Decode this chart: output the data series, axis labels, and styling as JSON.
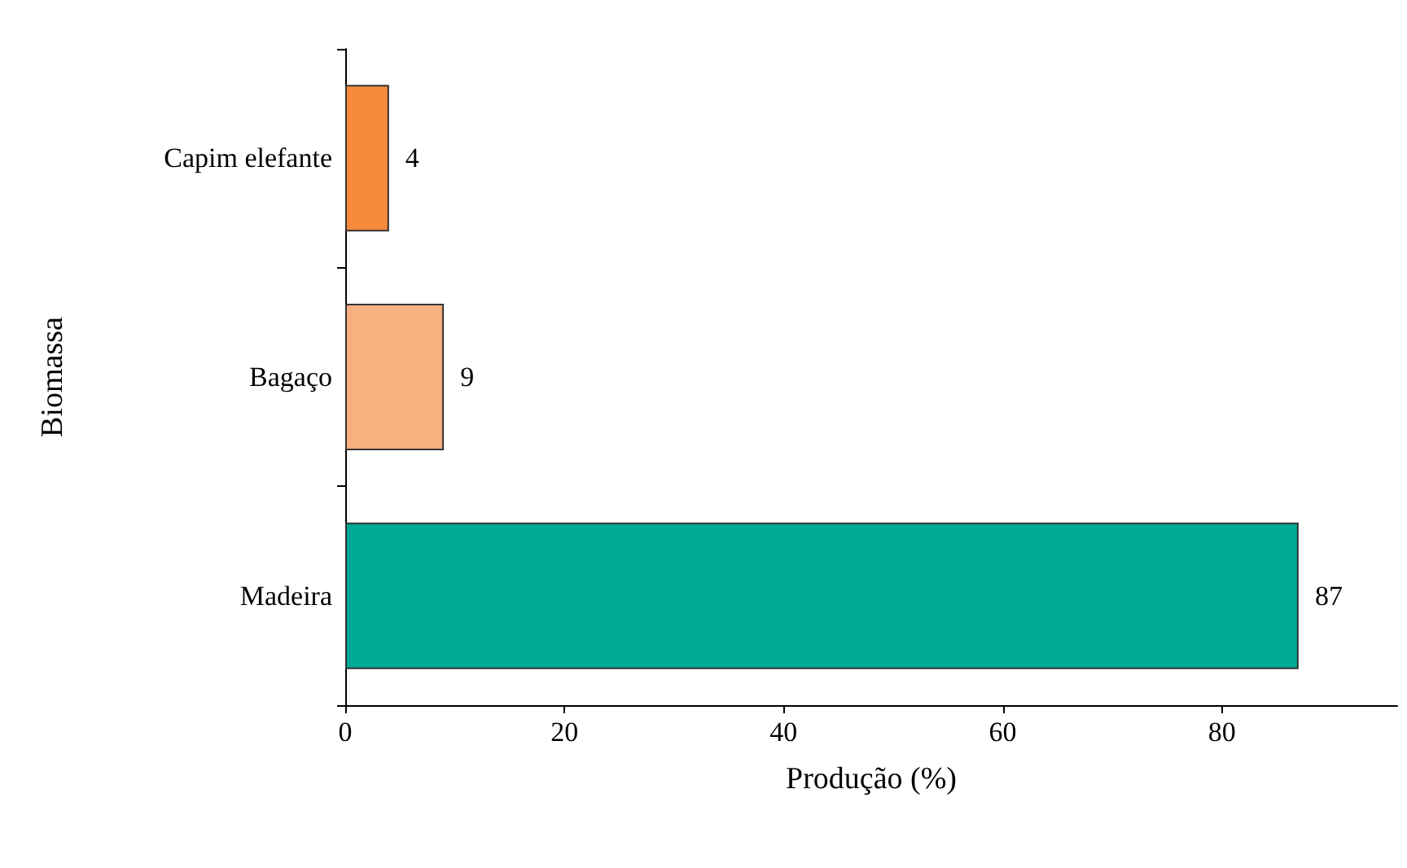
{
  "chart_data": {
    "type": "bar",
    "orientation": "horizontal",
    "xlabel": "Produção (%)",
    "ylabel": "Biomassa",
    "categories": [
      "Capim elefante",
      "Bagaço",
      "Madeira"
    ],
    "values": [
      4,
      9,
      87
    ],
    "colors": [
      "#f58a3a",
      "#f7b07f",
      "#00a896"
    ],
    "xlim": [
      0,
      96
    ],
    "xticks": [
      0,
      20,
      40,
      60,
      80
    ],
    "data_labels": true,
    "grid": false
  }
}
